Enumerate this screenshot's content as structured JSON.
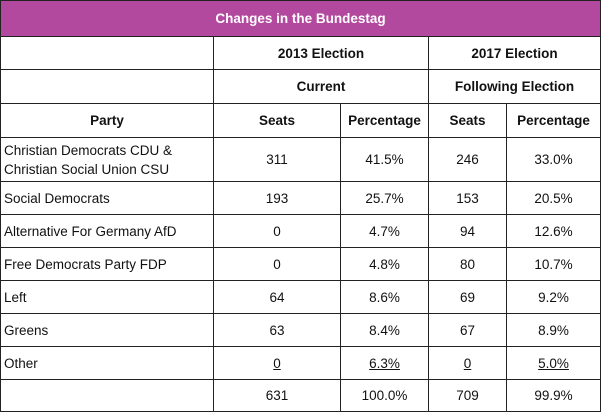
{
  "title": "Changes in the Bundestag",
  "headers": {
    "election_2013": "2013 Election",
    "election_2017": "2017 Election",
    "status_2013": "Current",
    "status_2017": "Following Election",
    "party": "Party",
    "seats_2013": "Seats",
    "percentage_2013": "Percentage",
    "seats_2017": "Seats",
    "percentage_2017": "Percentage"
  },
  "rows": [
    {
      "party": "Christian Democrats CDU & Christian Social Union CSU",
      "seats_2013": "311",
      "pct_2013": "41.5%",
      "seats_2017": "246",
      "pct_2017": "33.0%"
    },
    {
      "party": "Social Democrats",
      "seats_2013": "193",
      "pct_2013": "25.7%",
      "seats_2017": "153",
      "pct_2017": "20.5%"
    },
    {
      "party": "Alternative For Germany AfD",
      "seats_2013": "0",
      "pct_2013": "4.7%",
      "seats_2017": "94",
      "pct_2017": "12.6%"
    },
    {
      "party": "Free Democrats Party FDP",
      "seats_2013": "0",
      "pct_2013": "4.8%",
      "seats_2017": "80",
      "pct_2017": "10.7%"
    },
    {
      "party": "Left",
      "seats_2013": "64",
      "pct_2013": "8.6%",
      "seats_2017": "69",
      "pct_2017": "9.2%"
    },
    {
      "party": "Greens",
      "seats_2013": "63",
      "pct_2013": "8.4%",
      "seats_2017": "67",
      "pct_2017": "8.9%"
    },
    {
      "party": "Other",
      "seats_2013": "0",
      "pct_2013": "6.3%",
      "seats_2017": "0",
      "pct_2017": "5.0%"
    }
  ],
  "totals": {
    "party": "",
    "seats_2013": "631",
    "pct_2013": "100.0%",
    "seats_2017": "709",
    "pct_2017": "99.9%"
  },
  "colors": {
    "title_background": "#b3499e",
    "title_text": "#ffffff",
    "border": "#222222"
  }
}
